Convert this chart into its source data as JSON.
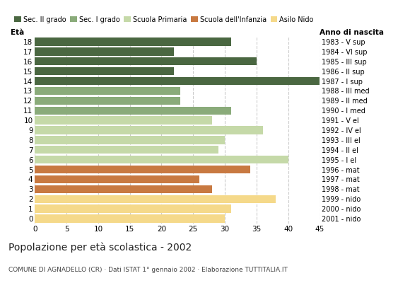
{
  "ages": [
    18,
    17,
    16,
    15,
    14,
    13,
    12,
    11,
    10,
    9,
    8,
    7,
    6,
    5,
    4,
    3,
    2,
    1,
    0
  ],
  "values": [
    31,
    22,
    35,
    22,
    45,
    23,
    23,
    31,
    28,
    36,
    30,
    29,
    40,
    34,
    26,
    28,
    38,
    31,
    30
  ],
  "right_labels": [
    "1983 - V sup",
    "1984 - VI sup",
    "1985 - III sup",
    "1986 - II sup",
    "1987 - I sup",
    "1988 - III med",
    "1989 - II med",
    "1990 - I med",
    "1991 - V el",
    "1992 - IV el",
    "1993 - III el",
    "1994 - II el",
    "1995 - I el",
    "1996 - mat",
    "1997 - mat",
    "1998 - mat",
    "1999 - nido",
    "2000 - nido",
    "2001 - nido"
  ],
  "colors": {
    "18": "#4a6741",
    "17": "#4a6741",
    "16": "#4a6741",
    "15": "#4a6741",
    "14": "#4a6741",
    "13": "#8aab7a",
    "12": "#8aab7a",
    "11": "#8aab7a",
    "10": "#c5d9a8",
    "9": "#c5d9a8",
    "8": "#c5d9a8",
    "7": "#c5d9a8",
    "6": "#c5d9a8",
    "5": "#c87941",
    "4": "#c87941",
    "3": "#c87941",
    "2": "#f5d98a",
    "1": "#f5d98a",
    "0": "#f5d98a"
  },
  "legend_labels": [
    "Sec. II grado",
    "Sec. I grado",
    "Scuola Primaria",
    "Scuola dell'Infanzia",
    "Asilo Nido"
  ],
  "legend_colors": [
    "#4a6741",
    "#8aab7a",
    "#c5d9a8",
    "#c87941",
    "#f5d98a"
  ],
  "title": "Popolazione per età scolastica - 2002",
  "subtitle": "COMUNE DI AGNADELLO (CR) · Dati ISTAT 1° gennaio 2002 · Elaborazione TUTTITALIA.IT",
  "xlabel_eta": "Età",
  "xlabel_anno": "Anno di nascita",
  "xlim": [
    0,
    45
  ],
  "xticks": [
    0,
    5,
    10,
    15,
    20,
    25,
    30,
    35,
    40,
    45
  ],
  "bg_color": "#ffffff",
  "grid_color": "#cccccc"
}
